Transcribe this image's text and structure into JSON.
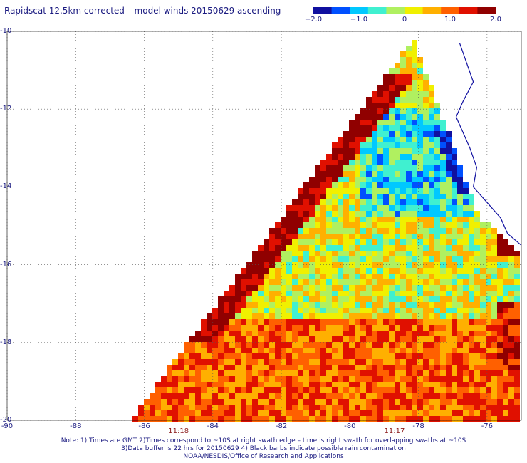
{
  "title": "Rapidscat 12.5km corrected – model winds 20150629 ascending",
  "colorbar": {
    "min": -2.0,
    "max": 2.0,
    "labels": [
      "−2.0",
      "−1.0",
      "0",
      "1.0",
      "2.0"
    ],
    "label_values": [
      -2.0,
      -1.0,
      0.0,
      1.0,
      2.0
    ],
    "colors": [
      "#1010a0",
      "#0050ff",
      "#00c8ff",
      "#40f0d0",
      "#b0f060",
      "#f0f000",
      "#ffb000",
      "#ff6000",
      "#e01000",
      "#900000"
    ]
  },
  "map": {
    "lon_range": [
      -90,
      -75
    ],
    "lat_range": [
      -20,
      -10
    ],
    "lat_ticks": [
      {
        "value": -10,
        "label": "-10"
      },
      {
        "value": -12,
        "label": "-12"
      },
      {
        "value": -14,
        "label": "-14"
      },
      {
        "value": -16,
        "label": "-16"
      },
      {
        "value": -18,
        "label": "-18"
      },
      {
        "value": -20,
        "label": "-20"
      }
    ],
    "lon_ticks": [
      {
        "value": -90,
        "label": "-90"
      },
      {
        "value": -88,
        "label": "-88"
      },
      {
        "value": -86,
        "label": "-86"
      },
      {
        "value": -84,
        "label": "-84"
      },
      {
        "value": -82,
        "label": "-82"
      },
      {
        "value": -80,
        "label": "-80"
      },
      {
        "value": -78,
        "label": "-78"
      },
      {
        "value": -76,
        "label": "-76"
      }
    ],
    "time_labels": [
      {
        "value": -85,
        "label": "11:18"
      },
      {
        "value": -78.7,
        "label": "11:17"
      }
    ],
    "grid": true,
    "coastline": [
      [
        -76.8,
        -10.3
      ],
      [
        -76.6,
        -10.8
      ],
      [
        -76.4,
        -11.3
      ],
      [
        -76.7,
        -11.8
      ],
      [
        -76.9,
        -12.2
      ],
      [
        -76.7,
        -12.6
      ],
      [
        -76.5,
        -13.0
      ],
      [
        -76.3,
        -13.5
      ],
      [
        -76.4,
        -14.0
      ],
      [
        -76.0,
        -14.4
      ],
      [
        -75.6,
        -14.8
      ],
      [
        -75.4,
        -15.2
      ],
      [
        -75.0,
        -15.5
      ]
    ]
  },
  "notes": [
    "Note: 1) Times are GMT 2)Times correspond to ~10S at right swath edge – time is right swath for overlapping swaths at ~10S",
    "3)Data buffer is 22 hrs for 20150629 4) Black barbs indicate possible rain contamination",
    "NOAA/NESDIS/Office of Research and Applications"
  ]
}
